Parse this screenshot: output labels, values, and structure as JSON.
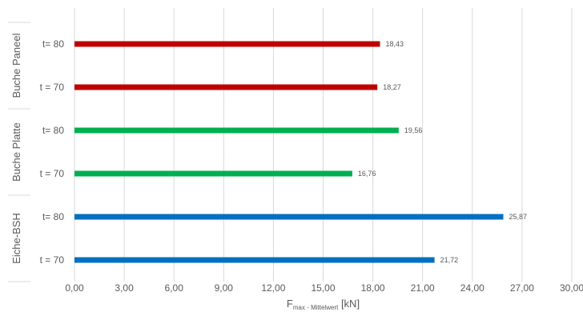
{
  "chart_data": {
    "type": "bar",
    "orientation": "horizontal",
    "xlabel": {
      "main": "F",
      "subscript": "max - Mittelwert",
      "unit": " [kN]"
    },
    "xlim": [
      0,
      30
    ],
    "xticks": [
      "0,00",
      "3,00",
      "6,00",
      "9,00",
      "12,00",
      "15,00",
      "18,00",
      "21,00",
      "24,00",
      "27,00",
      "30,00"
    ],
    "grid": "vertical",
    "groups": [
      {
        "name": "Buche Paneel",
        "color": "#c00000"
      },
      {
        "name": "Buche Platte",
        "color": "#00b050"
      },
      {
        "name": "Eiche-BSH",
        "color": "#0070c0"
      }
    ],
    "bars": [
      {
        "label": "t= 80",
        "group": 0,
        "value": 18.43,
        "value_label": "18,43"
      },
      {
        "label": "t = 70",
        "group": 0,
        "value": 18.27,
        "value_label": "18,27"
      },
      {
        "label": "t= 80",
        "group": 1,
        "value": 19.56,
        "value_label": "19,56"
      },
      {
        "label": "t = 70",
        "group": 1,
        "value": 16.76,
        "value_label": "16,76"
      },
      {
        "label": "t= 80",
        "group": 2,
        "value": 25.87,
        "value_label": "25,87"
      },
      {
        "label": "t = 70",
        "group": 2,
        "value": 21.72,
        "value_label": "21,72"
      }
    ]
  }
}
